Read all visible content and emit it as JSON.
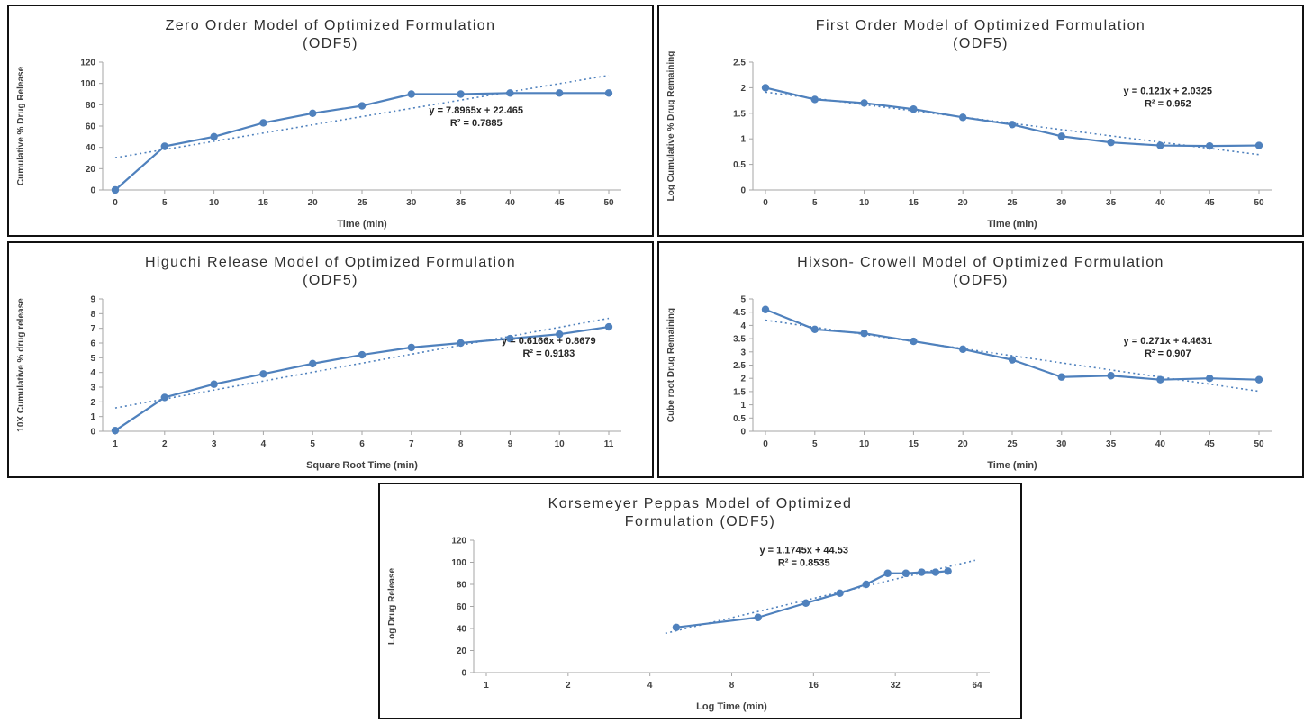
{
  "colors": {
    "series": "#4f81bd",
    "trend": "#4f81bd",
    "axis": "#a6a6a6",
    "tick_text": "#404040",
    "title_text": "#2f2f2f",
    "panel_border": "#111111",
    "background": "#ffffff"
  },
  "chart_data": [
    {
      "id": "zero-order",
      "type": "line",
      "title_lines": [
        "Zero Order Model of Optimized Formulation",
        "(ODF5)"
      ],
      "xlabel": "Time (min)",
      "ylabel": "Cumulative % Drug Release",
      "x_scale": "linear",
      "x_ticks": [
        0,
        5,
        10,
        15,
        20,
        25,
        30,
        35,
        40,
        45,
        50
      ],
      "y_ticks": [
        0,
        20,
        40,
        60,
        80,
        100,
        120
      ],
      "xlim": [
        0,
        50
      ],
      "ylim": [
        0,
        120
      ],
      "x": [
        0,
        5,
        10,
        15,
        20,
        25,
        30,
        35,
        40,
        45,
        50
      ],
      "y": [
        0,
        41,
        50,
        63,
        72,
        79,
        90,
        90,
        91,
        91,
        91
      ],
      "trendline": true,
      "annotation": {
        "equation": "y = 7.8965x + 22.465",
        "r2": "R² = 0.7885",
        "x": 0.72,
        "y": 0.4
      },
      "grid": false,
      "legend": "none"
    },
    {
      "id": "first-order",
      "type": "line",
      "title_lines": [
        "First Order Model of Optimized Formulation",
        "(ODF5)"
      ],
      "xlabel": "Time (min)",
      "ylabel": "Log Cumulative % Drug Remaining",
      "x_scale": "linear",
      "x_ticks": [
        0,
        5,
        10,
        15,
        20,
        25,
        30,
        35,
        40,
        45,
        50
      ],
      "y_ticks": [
        0,
        0.5,
        1,
        1.5,
        2,
        2.5
      ],
      "xlim": [
        0,
        50
      ],
      "ylim": [
        0,
        2.5
      ],
      "x": [
        0,
        5,
        10,
        15,
        20,
        25,
        30,
        35,
        40,
        45,
        50
      ],
      "y": [
        2.0,
        1.77,
        1.7,
        1.58,
        1.42,
        1.28,
        1.05,
        0.93,
        0.87,
        0.86,
        0.87
      ],
      "trendline": true,
      "annotation": {
        "equation": "y = 0.121x + 2.0325",
        "r2": "R² = 0.952",
        "x": 0.8,
        "y": 0.25
      },
      "grid": false,
      "legend": "none"
    },
    {
      "id": "higuchi",
      "type": "line",
      "title_lines": [
        "Higuchi Release Model of Optimized Formulation",
        "(ODF5)"
      ],
      "xlabel": "Square Root Time (min)",
      "ylabel": "10X Cumulative % drug release",
      "x_scale": "linear",
      "x_ticks": [
        1,
        2,
        3,
        4,
        5,
        6,
        7,
        8,
        9,
        10,
        11
      ],
      "y_ticks": [
        0,
        1,
        2,
        3,
        4,
        5,
        6,
        7,
        8,
        9
      ],
      "xlim": [
        1,
        11
      ],
      "ylim": [
        0,
        9
      ],
      "x": [
        1,
        2,
        3,
        4,
        5,
        6,
        7,
        8,
        9,
        10,
        11
      ],
      "y": [
        0.05,
        2.3,
        3.2,
        3.9,
        4.6,
        5.2,
        5.7,
        6.0,
        6.3,
        6.6,
        7.1
      ],
      "trendline": true,
      "annotation": {
        "equation": "y = 0.6166x + 0.8679",
        "r2": "R² = 0.9183",
        "x": 0.86,
        "y": 0.34
      },
      "grid": false,
      "legend": "none"
    },
    {
      "id": "hixson-crowell",
      "type": "line",
      "title_lines": [
        "Hixson- Crowell Model of Optimized Formulation",
        "(ODF5)"
      ],
      "xlabel": "Time (min)",
      "ylabel": "Cube root Drug Remaining",
      "x_scale": "linear",
      "x_ticks": [
        0,
        5,
        10,
        15,
        20,
        25,
        30,
        35,
        40,
        45,
        50
      ],
      "y_ticks": [
        0,
        0.5,
        1,
        1.5,
        2,
        2.5,
        3,
        3.5,
        4,
        4.5,
        5
      ],
      "xlim": [
        0,
        50
      ],
      "ylim": [
        0,
        5
      ],
      "x": [
        0,
        5,
        10,
        15,
        20,
        25,
        30,
        35,
        40,
        45,
        50
      ],
      "y": [
        4.6,
        3.85,
        3.7,
        3.4,
        3.1,
        2.7,
        2.05,
        2.1,
        1.95,
        2.0,
        1.95
      ],
      "trendline": true,
      "annotation": {
        "equation": "y = 0.271x + 4.4631",
        "r2": "R² = 0.907",
        "x": 0.8,
        "y": 0.34
      },
      "grid": false,
      "legend": "none"
    },
    {
      "id": "korsemeyer-peppas",
      "type": "line",
      "title_lines": [
        "Korsemeyer Peppas Model of Optimized",
        "Formulation (ODF5)"
      ],
      "xlabel": "Log Time (min)",
      "ylabel": "Log Drug Release",
      "x_scale": "log2",
      "x_ticks": [
        1,
        2,
        4,
        8,
        16,
        32,
        64
      ],
      "y_ticks": [
        0,
        20,
        40,
        60,
        80,
        100,
        120
      ],
      "xlim": [
        1,
        64
      ],
      "ylim": [
        0,
        120
      ],
      "x": [
        5,
        10,
        15,
        20,
        25,
        30,
        35,
        40,
        45,
        50
      ],
      "y": [
        41,
        50,
        63,
        72,
        80,
        90,
        90,
        91,
        91,
        92
      ],
      "trendline": true,
      "annotation": {
        "equation": "y = 1.1745x + 44.53",
        "r2": "R² = 0.8535",
        "x": 0.64,
        "y": 0.1
      },
      "grid": false,
      "legend": "none"
    }
  ]
}
